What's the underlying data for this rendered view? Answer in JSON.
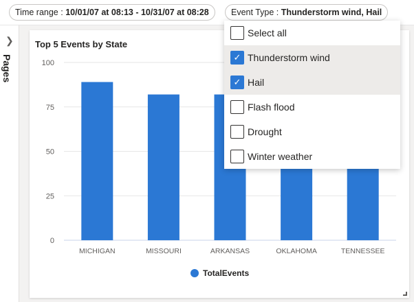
{
  "filters": {
    "time_range": {
      "label": "Time range : ",
      "value": "10/01/07 at 08:13 - 10/31/07 at 08:28"
    },
    "event_type": {
      "label": "Event Type : ",
      "value": "Thunderstorm wind, Hail"
    }
  },
  "pages_panel": {
    "label": "Pages"
  },
  "dropdown": {
    "items": [
      {
        "label": "Select all",
        "checked": false
      },
      {
        "label": "Thunderstorm wind",
        "checked": true
      },
      {
        "label": "Hail",
        "checked": true
      },
      {
        "label": "Flash flood",
        "checked": false
      },
      {
        "label": "Drought",
        "checked": false
      },
      {
        "label": "Winter weather",
        "checked": false
      }
    ]
  },
  "chart_data": {
    "type": "bar",
    "title": "Top 5 Events by State",
    "categories": [
      "MICHIGAN",
      "MISSOURI",
      "ARKANSAS",
      "OKLAHOMA",
      "TENNESSEE"
    ],
    "series": [
      {
        "name": "TotalEvents",
        "values": [
          89,
          82,
          82,
          80,
          79
        ],
        "color": "#2b78d4"
      }
    ],
    "ylim": [
      0,
      100
    ],
    "yticks": [
      "0",
      "25",
      "50",
      "75",
      "100"
    ],
    "grid": true,
    "legend": "bottom"
  }
}
